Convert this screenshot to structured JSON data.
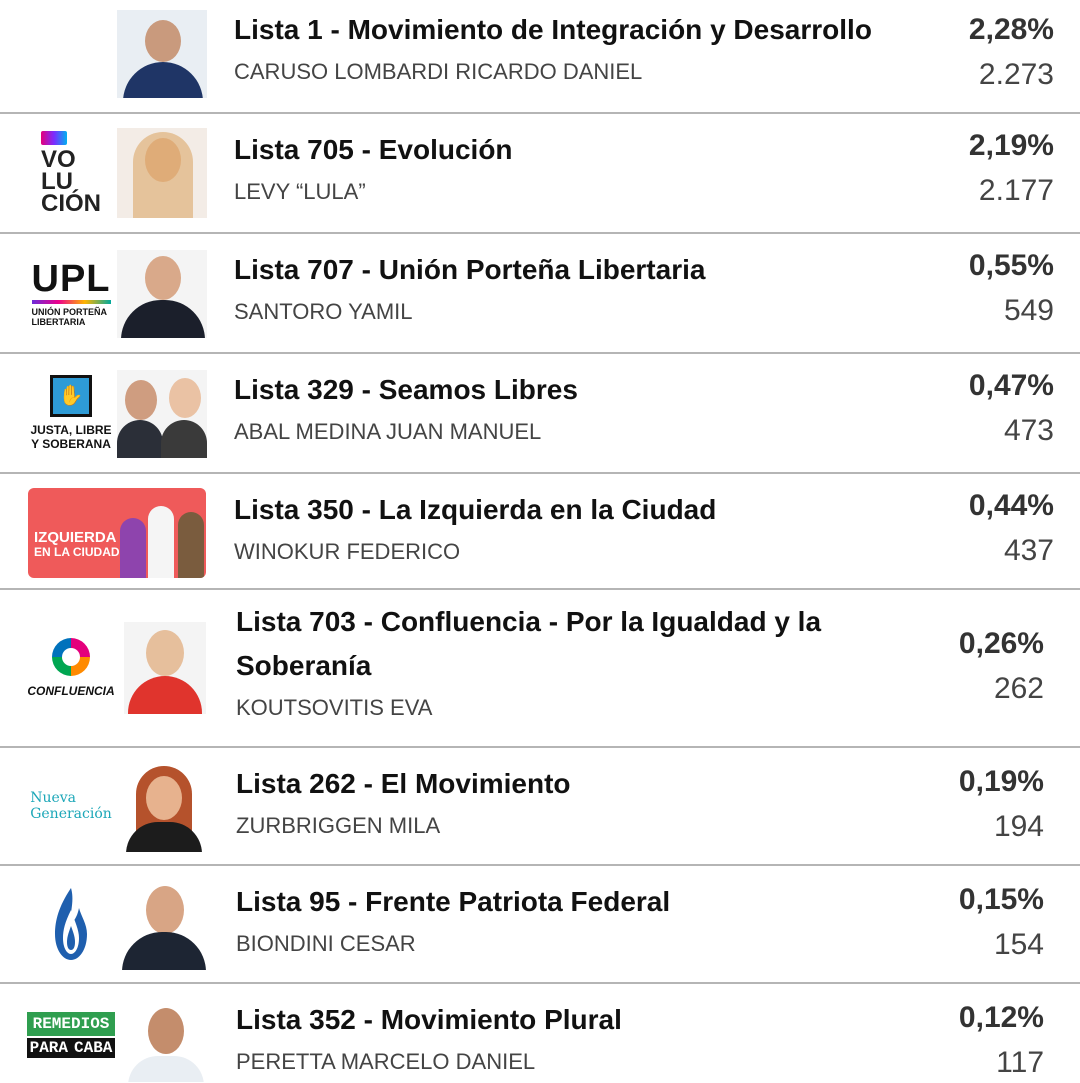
{
  "rows": [
    {
      "party": "Lista 1 - Movimiento de Integración y Desarrollo",
      "candidate": "CARUSO LOMBARDI RICARDO DANIEL",
      "percent": "2,28%",
      "votes": "2.273"
    },
    {
      "party": "Lista 705 - Evolución",
      "candidate": "LEVY “LULA”",
      "percent": "2,19%",
      "votes": "2.177",
      "logo_text": [
        "VO",
        "LU",
        "CIÓN"
      ]
    },
    {
      "party": "Lista 707 - Unión Porteña Libertaria",
      "candidate": "SANTORO YAMIL",
      "percent": "0,55%",
      "votes": "549",
      "logo_text": [
        "UPL",
        "UNIÓN PORTEÑA",
        "LIBERTARIA"
      ]
    },
    {
      "party": "Lista 329 - Seamos Libres",
      "candidate": "ABAL MEDINA JUAN MANUEL",
      "percent": "0,47%",
      "votes": "473",
      "logo_text": [
        "JUSTA, LIBRE",
        "Y SOBERANA"
      ]
    },
    {
      "party": "Lista 350 - La Izquierda en la Ciudad",
      "candidate": "WINOKUR FEDERICO",
      "percent": "0,44%",
      "votes": "437",
      "logo_text": [
        "IZQUIERDA",
        "EN LA CIUDAD"
      ]
    },
    {
      "party": "Lista 703 - Confluencia - Por la Igualdad y la Soberanía",
      "candidate": "KOUTSOVITIS EVA",
      "percent": "0,26%",
      "votes": "262",
      "logo_text": [
        "CONFLUENCIA"
      ]
    },
    {
      "party": "Lista 262 - El Movimiento",
      "candidate": "ZURBRIGGEN MILA",
      "percent": "0,19%",
      "votes": "194",
      "logo_text": [
        "Nueva",
        "Generación"
      ]
    },
    {
      "party": "Lista 95 - Frente Patriota Federal",
      "candidate": "BIONDINI CESAR",
      "percent": "0,15%",
      "votes": "154"
    },
    {
      "party": "Lista 352 - Movimiento Plural",
      "candidate": "PERETTA MARCELO DANIEL",
      "percent": "0,12%",
      "votes": "117",
      "logo_text": [
        "REMEDIOS",
        "PARA",
        "CABA"
      ]
    }
  ],
  "colors": {
    "divider": "#b5b5b5",
    "party_text": "#111111",
    "candidate_text": "#444444"
  }
}
